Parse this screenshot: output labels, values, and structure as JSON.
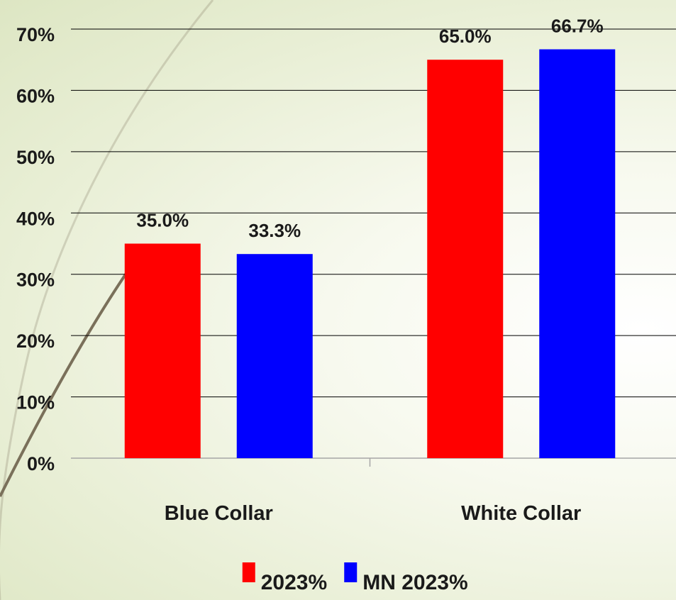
{
  "chart_data": {
    "type": "bar",
    "categories": [
      "Blue Collar",
      "White Collar"
    ],
    "series": [
      {
        "name": "2023%",
        "values": [
          35.0,
          65.0
        ],
        "color": "#ff0000"
      },
      {
        "name": "MN 2023%",
        "values": [
          33.3,
          66.7
        ],
        "color": "#0000ff"
      }
    ],
    "data_labels": [
      [
        "35.0%",
        "65.0%"
      ],
      [
        "33.3%",
        "66.7%"
      ]
    ],
    "y_ticks": [
      "0%",
      "10%",
      "20%",
      "30%",
      "40%",
      "50%",
      "60%",
      "70%"
    ],
    "ylim": [
      0,
      70
    ],
    "grid": true,
    "legend_position": "bottom",
    "title": "",
    "xlabel": "",
    "ylabel": ""
  },
  "colors": {
    "gridline": "#000000",
    "axis": "#a6a6a6",
    "decor_arc": "#7a705a"
  }
}
